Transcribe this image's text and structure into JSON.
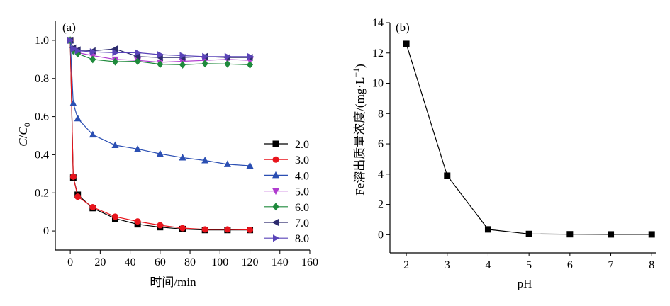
{
  "chart_data": [
    {
      "id": "a",
      "panel_label": "(a)",
      "type": "line",
      "xlabel": "时间/min",
      "ylabel_main": "C",
      "ylabel_slash": "/",
      "ylabel_sub_main": "C",
      "ylabel_sub_index": "0",
      "xlim": [
        -10,
        160
      ],
      "ylim": [
        -0.1,
        1.1
      ],
      "xticks": [
        0,
        20,
        40,
        60,
        80,
        100,
        120,
        140,
        160
      ],
      "yticks": [
        0,
        0.2,
        0.4,
        0.6,
        0.8,
        1.0
      ],
      "ytick_labels": [
        "0",
        "0.2",
        "0.4",
        "0.6",
        "0.8",
        "1.0"
      ],
      "legend_position": "right",
      "x": [
        0,
        2,
        5,
        15,
        30,
        45,
        60,
        75,
        90,
        105,
        120
      ],
      "series": [
        {
          "name": "2.0",
          "color": "#000000",
          "marker": "square",
          "values": [
            1.0,
            0.28,
            0.19,
            0.12,
            0.065,
            0.035,
            0.02,
            0.01,
            0.005,
            0.005,
            0.005
          ]
        },
        {
          "name": "3.0",
          "color": "#e8141c",
          "marker": "circle",
          "values": [
            1.0,
            0.285,
            0.18,
            0.125,
            0.075,
            0.05,
            0.03,
            0.015,
            0.008,
            0.008,
            0.006
          ]
        },
        {
          "name": "4.0",
          "color": "#2b4fb3",
          "marker": "triangle-up",
          "values": [
            1.0,
            0.67,
            0.59,
            0.505,
            0.45,
            0.43,
            0.405,
            0.385,
            0.37,
            0.35,
            0.342
          ]
        },
        {
          "name": "5.0",
          "color": "#b03ccf",
          "marker": "triangle-down",
          "values": [
            1.0,
            0.95,
            0.935,
            0.92,
            0.9,
            0.895,
            0.885,
            0.89,
            0.895,
            0.9,
            0.895
          ]
        },
        {
          "name": "6.0",
          "color": "#1f8a3c",
          "marker": "diamond",
          "values": [
            1.0,
            0.945,
            0.93,
            0.9,
            0.888,
            0.89,
            0.875,
            0.872,
            0.878,
            0.876,
            0.872
          ]
        },
        {
          "name": "7.0",
          "color": "#2d2b6e",
          "marker": "triangle-left",
          "values": [
            1.0,
            0.96,
            0.95,
            0.945,
            0.955,
            0.915,
            0.91,
            0.91,
            0.915,
            0.91,
            0.91
          ]
        },
        {
          "name": "8.0",
          "color": "#5a44b8",
          "marker": "triangle-right",
          "values": [
            1.0,
            0.955,
            0.945,
            0.94,
            0.935,
            0.935,
            0.925,
            0.92,
            0.915,
            0.915,
            0.915
          ]
        }
      ]
    },
    {
      "id": "b",
      "panel_label": "(b)",
      "type": "line",
      "xlabel": "pH",
      "ylabel": "Fe溶出质量浓度/(mg·L",
      "ylabel_sup": "−1",
      "ylabel_close": ")",
      "xlim": [
        1.6,
        8.1
      ],
      "ylim": [
        -1.2,
        14
      ],
      "xticks": [
        2,
        3,
        4,
        5,
        6,
        7,
        8
      ],
      "yticks": [
        0,
        2,
        4,
        6,
        8,
        10,
        12,
        14
      ],
      "marker": "square",
      "color": "#000000",
      "x": [
        2,
        3,
        4,
        5,
        6,
        7,
        8
      ],
      "values": [
        12.6,
        3.9,
        0.35,
        0.05,
        0.03,
        0.02,
        0.02
      ]
    }
  ]
}
